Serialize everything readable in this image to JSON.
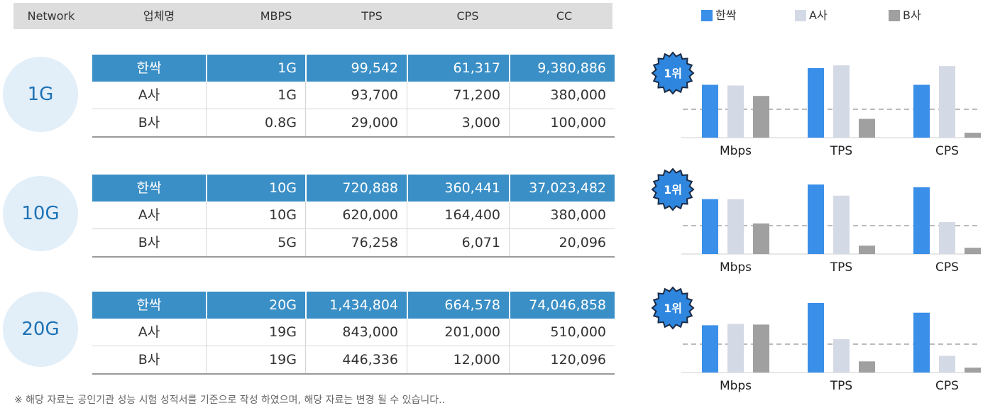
{
  "header": {
    "network": "Network",
    "vendor": "업체명",
    "mbps": "MBPS",
    "tps": "TPS",
    "cps": "CPS",
    "cc": "CC"
  },
  "legend": [
    {
      "label": "한싹",
      "color": "#3a8fe8"
    },
    {
      "label": "A사",
      "color": "#d4dae5"
    },
    {
      "label": "B사",
      "color": "#a0a0a0"
    }
  ],
  "badge_text": "1위",
  "groups": [
    {
      "network": "1G",
      "rows": [
        {
          "vendor": "한싹",
          "mbps": "1G",
          "tps": "99,542",
          "cps": "61,317",
          "cc": "9,380,886"
        },
        {
          "vendor": "A사",
          "mbps": "1G",
          "tps": "93,700",
          "cps": "71,200",
          "cc": "380,000"
        },
        {
          "vendor": "B사",
          "mbps": "0.8G",
          "tps": "29,000",
          "cps": "3,000",
          "cc": "100,000"
        }
      ]
    },
    {
      "network": "10G",
      "rows": [
        {
          "vendor": "한싹",
          "mbps": "10G",
          "tps": "720,888",
          "cps": "360,441",
          "cc": "37,023,482"
        },
        {
          "vendor": "A사",
          "mbps": "10G",
          "tps": "620,000",
          "cps": "164,400",
          "cc": "380,000"
        },
        {
          "vendor": "B사",
          "mbps": "5G",
          "tps": "76,258",
          "cps": "6,071",
          "cc": "20,096"
        }
      ]
    },
    {
      "network": "20G",
      "rows": [
        {
          "vendor": "한싹",
          "mbps": "20G",
          "tps": "1,434,804",
          "cps": "664,578",
          "cc": "74,046,858"
        },
        {
          "vendor": "A사",
          "mbps": "19G",
          "tps": "843,000",
          "cps": "201,000",
          "cc": "510,000"
        },
        {
          "vendor": "B사",
          "mbps": "19G",
          "tps": "446,336",
          "cps": "12,000",
          "cc": "120,096"
        }
      ]
    }
  ],
  "chart_data": [
    {
      "type": "bar",
      "categories": [
        "Mbps",
        "TPS",
        "CPS"
      ],
      "series": [
        {
          "name": "한싹",
          "values": [
            0.76,
            1.0,
            0.76
          ]
        },
        {
          "name": "A사",
          "values": [
            0.75,
            1.04,
            1.03
          ]
        },
        {
          "name": "B사",
          "values": [
            0.6,
            0.27,
            0.07
          ]
        }
      ]
    },
    {
      "type": "bar",
      "categories": [
        "Mbps",
        "TPS",
        "CPS"
      ],
      "series": [
        {
          "name": "한싹",
          "values": [
            0.79,
            1.0,
            0.96
          ]
        },
        {
          "name": "A사",
          "values": [
            0.79,
            0.84,
            0.46
          ]
        },
        {
          "name": "B사",
          "values": [
            0.44,
            0.12,
            0.09
          ]
        }
      ]
    },
    {
      "type": "bar",
      "categories": [
        "Mbps",
        "TPS",
        "CPS"
      ],
      "series": [
        {
          "name": "한싹",
          "values": [
            0.68,
            1.0,
            0.86
          ]
        },
        {
          "name": "A사",
          "values": [
            0.7,
            0.48,
            0.24
          ]
        },
        {
          "name": "B사",
          "values": [
            0.69,
            0.16,
            0.07
          ]
        }
      ]
    }
  ],
  "footnote": "※ 해당 자료는 공인기관 성능 시험 성적서를 기준으로 작성 하였으며, 해당 자료는 변경 될 수 있습니다.."
}
